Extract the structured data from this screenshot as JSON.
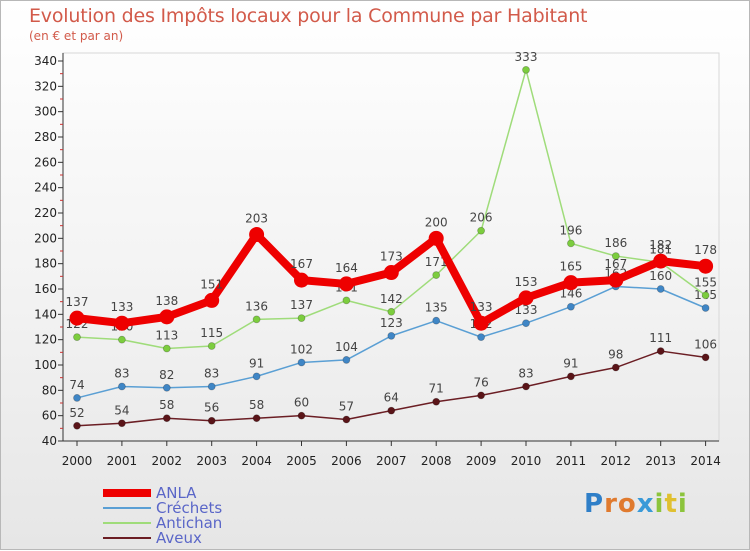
{
  "title": "Evolution des Impôts locaux pour la Commune par Habitant",
  "subtitle": "(en € et par an)",
  "logo": "Proxiti",
  "chart_data": {
    "type": "line",
    "title": "Evolution des Impôts locaux pour la Commune par Habitant",
    "subtitle": "(en € et par an)",
    "xlabel": "",
    "ylabel": "",
    "ylim": [
      40,
      340
    ],
    "yticks": [
      40,
      60,
      80,
      100,
      120,
      140,
      160,
      180,
      200,
      220,
      240,
      260,
      280,
      300,
      320,
      340
    ],
    "grid": false,
    "legend": "bottom-left",
    "x": [
      "2000",
      "2001",
      "2002",
      "2003",
      "2004",
      "2005",
      "2006",
      "2007",
      "2008",
      "2009",
      "2010",
      "2011",
      "2012",
      "2013",
      "2014"
    ],
    "series": [
      {
        "name": "Aveux",
        "color": "#6b1e24",
        "point_color": "#5a1418",
        "values": [
          52,
          54,
          58,
          56,
          58,
          60,
          57,
          64,
          71,
          76,
          83,
          91,
          98,
          111,
          106
        ],
        "labels": [
          "52",
          "54",
          "58",
          "56",
          "58",
          "60",
          "57",
          "64",
          "71",
          "76",
          "83",
          "91",
          "98",
          "111",
          "106"
        ]
      },
      {
        "name": "Créchets",
        "color": "#5a9fd4",
        "point_color": "#3f86c6",
        "values": [
          74,
          83,
          82,
          83,
          91,
          102,
          104,
          123,
          135,
          122,
          133,
          146,
          162,
          160,
          145
        ],
        "labels": [
          "74",
          "83",
          "82",
          "83",
          "91",
          "102",
          "104",
          "123",
          "135",
          "122",
          "133",
          "146",
          "162",
          "160",
          "145"
        ]
      },
      {
        "name": "Antichan",
        "color": "#9fdc7a",
        "point_color": "#7ccd3e",
        "values": [
          122,
          120,
          113,
          115,
          136,
          137,
          151,
          142,
          171,
          206,
          333,
          196,
          186,
          181,
          155
        ],
        "labels": [
          "122",
          "120",
          "113",
          "115",
          "136",
          "137",
          "151",
          "142",
          "171",
          "206",
          "333",
          "196",
          "186",
          "181",
          "155"
        ]
      },
      {
        "name": "ANLA",
        "color": "#ee0000",
        "point_color": "#ee0000",
        "values": [
          137,
          133,
          138,
          151,
          203,
          167,
          164,
          173,
          200,
          133,
          153,
          165,
          167,
          182,
          178
        ],
        "labels": [
          "137",
          "133",
          "138",
          "151",
          "203",
          "167",
          "164",
          "173",
          "200",
          "133",
          "153",
          "165",
          "167",
          "182",
          "178"
        ]
      }
    ]
  }
}
